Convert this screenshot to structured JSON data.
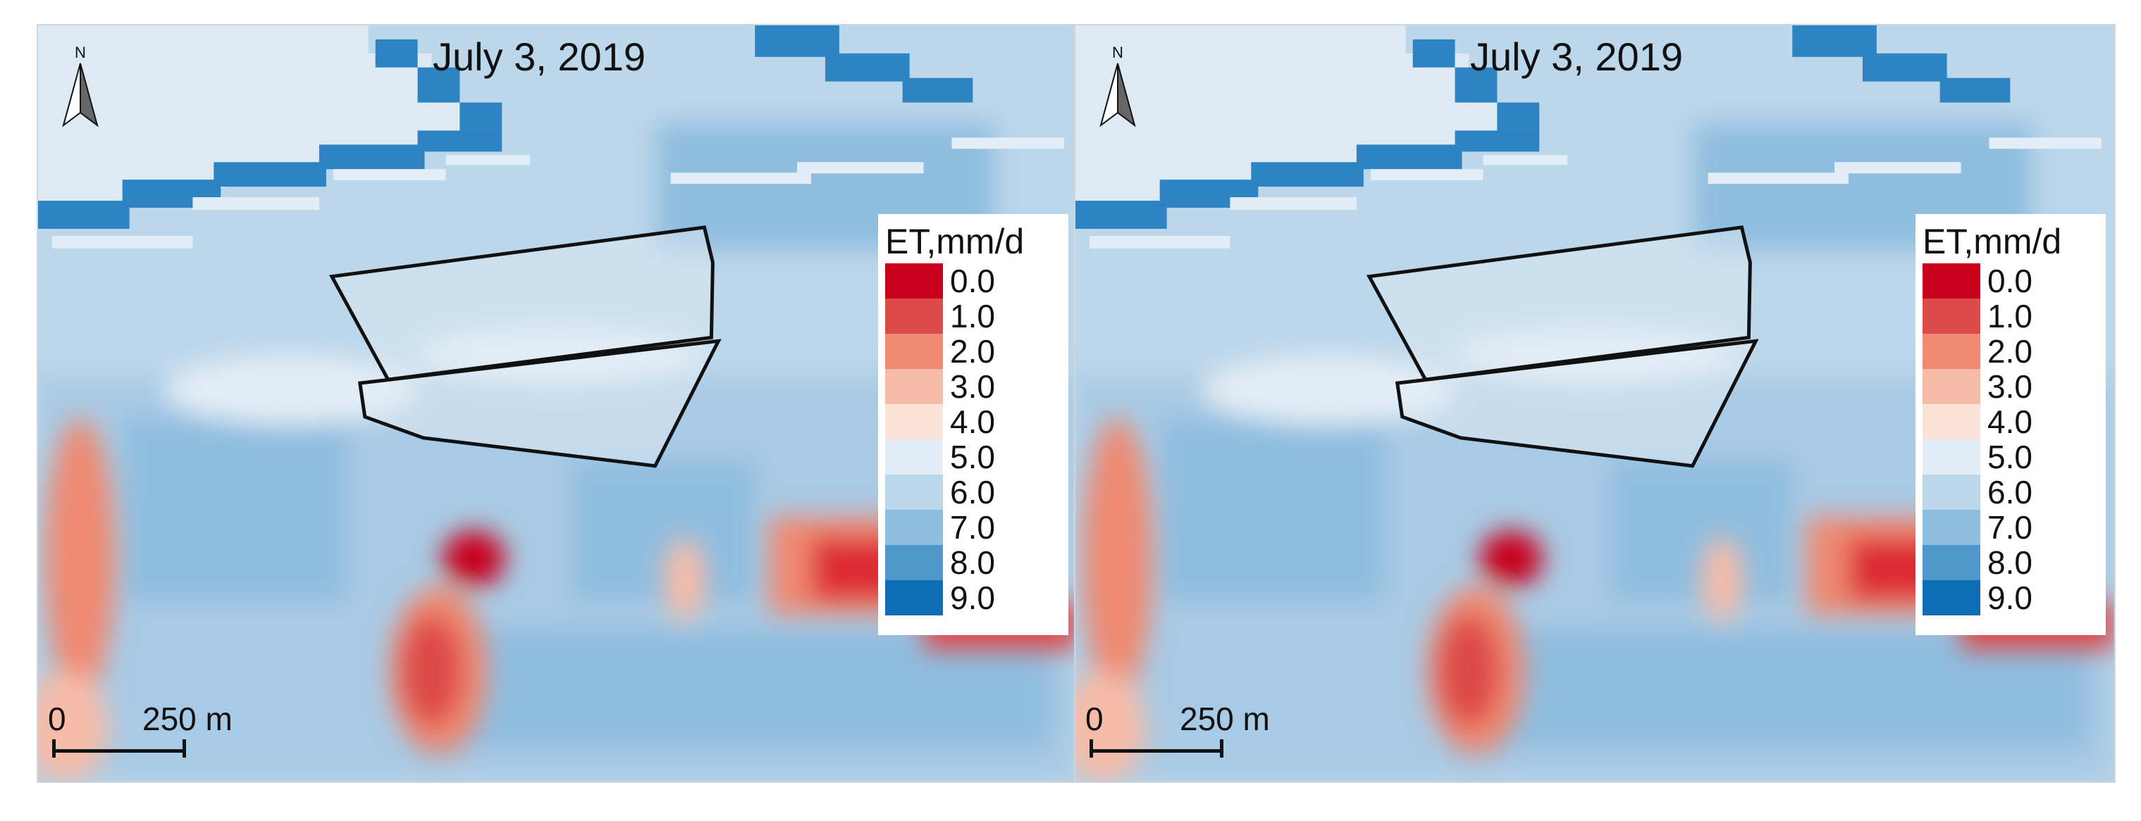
{
  "panels": [
    {
      "date": "July 3, 2019",
      "north_label": "N",
      "legend_title": "ET,mm/d",
      "scale_zero": "0",
      "scale_distance": "250 m"
    },
    {
      "date": "July 3, 2019",
      "north_label": "N",
      "legend_title": "ET,mm/d",
      "scale_zero": "0",
      "scale_distance": "250 m"
    }
  ],
  "legend": [
    {
      "label": "0.0",
      "color": "#c8001c"
    },
    {
      "label": "1.0",
      "color": "#dd4a4a"
    },
    {
      "label": "2.0",
      "color": "#ef8a72"
    },
    {
      "label": "3.0",
      "color": "#f6bca8"
    },
    {
      "label": "4.0",
      "color": "#fbe3da"
    },
    {
      "label": "5.0",
      "color": "#e3edf5"
    },
    {
      "label": "6.0",
      "color": "#bcd6ea"
    },
    {
      "label": "7.0",
      "color": "#8fbddf"
    },
    {
      "label": "8.0",
      "color": "#4f97cb"
    },
    {
      "label": "9.0",
      "color": "#0f6db5"
    }
  ]
}
